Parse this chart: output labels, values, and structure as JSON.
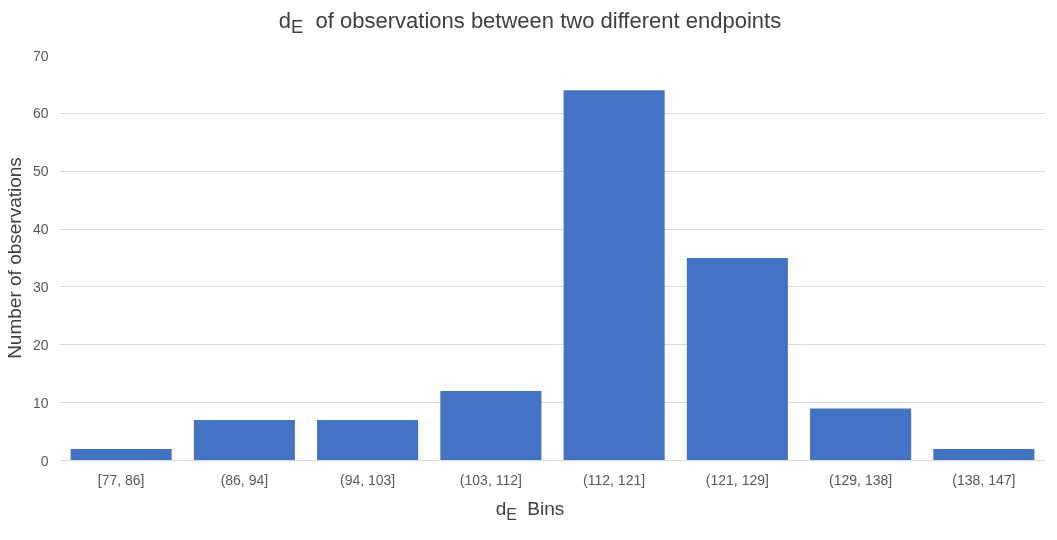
{
  "chart_data": {
    "type": "bar",
    "title": "d$_{E}$  of observations between two different endpoints",
    "xlabel": "d$_{E}$  Bins",
    "ylabel": "Number of observations",
    "categories": [
      "[77, 86]",
      "(86, 94]",
      "(94, 103]",
      "(103, 112]",
      "(112, 121]",
      "(121, 129]",
      "(129, 138]",
      "(138, 147]"
    ],
    "values": [
      2,
      7,
      7,
      12,
      64,
      35,
      9,
      2
    ],
    "color": "#4472c4",
    "ylim": [
      0,
      70
    ],
    "yticks": [
      0,
      10,
      20,
      30,
      40,
      50,
      60,
      70
    ],
    "grid": "y"
  }
}
